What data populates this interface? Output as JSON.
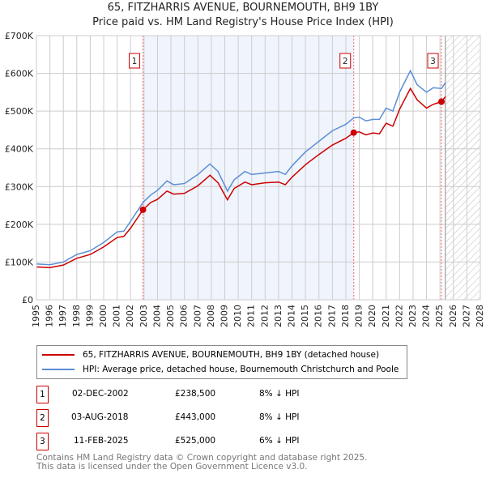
{
  "title": "65, FITZHARRIS AVENUE, BOURNEMOUTH, BH9 1BY",
  "subtitle": "Price paid vs. HM Land Registry's House Price Index (HPI)",
  "chart_data": {
    "type": "line",
    "title": "65, FITZHARRIS AVENUE, BOURNEMOUTH, BH9 1BY",
    "subtitle": "Price paid vs. HM Land Registry's House Price Index (HPI)",
    "xlim": [
      1995,
      2028
    ],
    "ylim": [
      0,
      700000
    ],
    "grid": true,
    "x_ticks": [
      "1995",
      "1996",
      "1997",
      "1998",
      "1999",
      "2000",
      "2001",
      "2002",
      "2003",
      "2004",
      "2005",
      "2006",
      "2007",
      "2008",
      "2009",
      "2010",
      "2011",
      "2012",
      "2013",
      "2014",
      "2015",
      "2016",
      "2017",
      "2018",
      "2019",
      "2020",
      "2021",
      "2022",
      "2023",
      "2024",
      "2025",
      "2026",
      "2027",
      "2028"
    ],
    "y_ticks": [
      {
        "v": 0,
        "label": "£0"
      },
      {
        "v": 100000,
        "label": "£100K"
      },
      {
        "v": 200000,
        "label": "£200K"
      },
      {
        "v": 300000,
        "label": "£300K"
      },
      {
        "v": 400000,
        "label": "£400K"
      },
      {
        "v": 500000,
        "label": "£500K"
      },
      {
        "v": 600000,
        "label": "£600K"
      },
      {
        "v": 700000,
        "label": "£700K"
      }
    ],
    "shaded_range": [
      2002.92,
      2018.59
    ],
    "forecast_hatch_from": 2025.4,
    "series": [
      {
        "name": "65, FITZHARRIS AVENUE, BOURNEMOUTH, BH9 1BY (detached house)",
        "color": "#cc0000",
        "x": [
          1995,
          1996,
          1997,
          1998,
          1999,
          2000,
          2001,
          2001.5,
          2002,
          2002.92,
          2003.5,
          2004,
          2004.7,
          2005.2,
          2006,
          2007,
          2007.9,
          2008.5,
          2009.2,
          2009.7,
          2010.5,
          2011,
          2012,
          2013,
          2013.5,
          2014,
          2015,
          2016,
          2017,
          2018,
          2018.59,
          2019,
          2019.5,
          2020,
          2020.5,
          2021,
          2021.5,
          2022,
          2022.8,
          2023.3,
          2024,
          2024.5,
          2025.11,
          2025.4
        ],
        "y": [
          87000,
          85000,
          92000,
          110000,
          120000,
          140000,
          165000,
          168000,
          190000,
          238500,
          258000,
          266000,
          288000,
          280000,
          282000,
          302000,
          330000,
          310000,
          265000,
          295000,
          312000,
          305000,
          310000,
          312000,
          305000,
          325000,
          358000,
          385000,
          410000,
          428000,
          443000,
          445000,
          437000,
          442000,
          440000,
          468000,
          460000,
          505000,
          560000,
          530000,
          508000,
          518000,
          525000,
          538000
        ]
      },
      {
        "name": "HPI: Average price, detached house, Bournemouth Christchurch and Poole",
        "color": "#5b8ed6",
        "x": [
          1995,
          1996,
          1997,
          1998,
          1999,
          2000,
          2001,
          2001.5,
          2002,
          2002.92,
          2003.5,
          2004,
          2004.7,
          2005.2,
          2006,
          2007,
          2007.9,
          2008.5,
          2009.2,
          2009.7,
          2010.5,
          2011,
          2012,
          2013,
          2013.5,
          2014,
          2015,
          2016,
          2017,
          2018,
          2018.59,
          2019,
          2019.5,
          2020,
          2020.5,
          2021,
          2021.5,
          2022,
          2022.8,
          2023.3,
          2024,
          2024.5,
          2025.11,
          2025.4
        ],
        "y": [
          95000,
          93000,
          100000,
          120000,
          130000,
          152000,
          180000,
          182000,
          208000,
          258000,
          278000,
          290000,
          315000,
          305000,
          308000,
          332000,
          360000,
          340000,
          288000,
          318000,
          340000,
          332000,
          336000,
          340000,
          332000,
          355000,
          392000,
          420000,
          448000,
          465000,
          482000,
          484000,
          474000,
          478000,
          478000,
          508000,
          500000,
          550000,
          607000,
          570000,
          550000,
          562000,
          560000,
          575000
        ]
      }
    ],
    "markers": [
      {
        "label": "1",
        "x": 2002.92,
        "y": 238500
      },
      {
        "label": "2",
        "x": 2018.59,
        "y": 443000
      },
      {
        "label": "3",
        "x": 2025.11,
        "y": 525000
      }
    ]
  },
  "legend": [
    {
      "label": "65, FITZHARRIS AVENUE, BOURNEMOUTH, BH9 1BY (detached house)",
      "color": "#cc0000"
    },
    {
      "label": "HPI: Average price, detached house, Bournemouth Christchurch and Poole",
      "color": "#5b8ed6"
    }
  ],
  "sales": [
    {
      "num": "1",
      "date": "02-DEC-2002",
      "price": "£238,500",
      "hpi": "8% ↓ HPI"
    },
    {
      "num": "2",
      "date": "03-AUG-2018",
      "price": "£443,000",
      "hpi": "8% ↓ HPI"
    },
    {
      "num": "3",
      "date": "11-FEB-2025",
      "price": "£525,000",
      "hpi": "6% ↓ HPI"
    }
  ],
  "footer": {
    "line1": "Contains HM Land Registry data © Crown copyright and database right 2025.",
    "line2": "This data is licensed under the Open Government Licence v3.0."
  }
}
